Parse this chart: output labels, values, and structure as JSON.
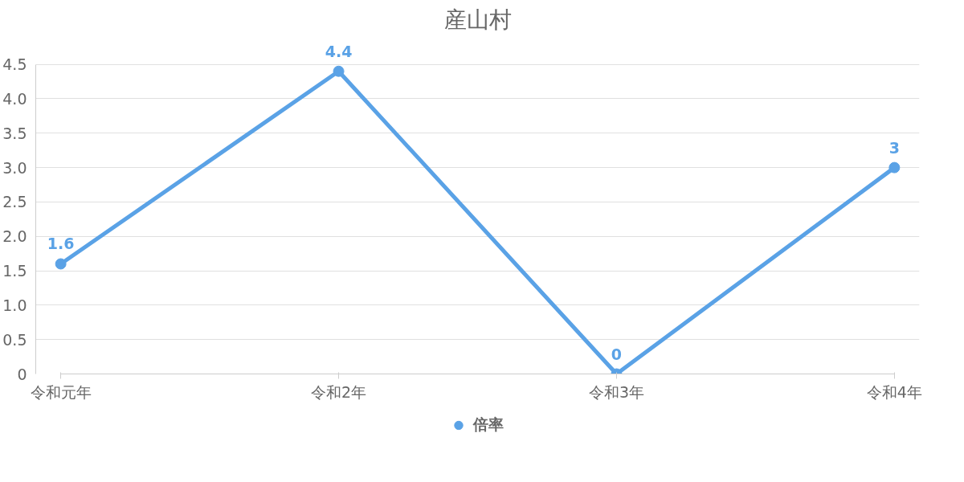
{
  "chart_data": {
    "type": "line",
    "title": "産山村",
    "categories": [
      "令和元年",
      "令和2年",
      "令和3年",
      "令和4年"
    ],
    "series": [
      {
        "name": "倍率",
        "color": "#5aa2e6",
        "values": [
          1.6,
          4.4,
          0,
          3
        ]
      }
    ],
    "ylim": [
      0,
      4.5
    ],
    "yticks": [
      0,
      0.5,
      {
        "value": 1,
        "label": "1.0"
      },
      1.5,
      {
        "value": 2,
        "label": "2.0"
      },
      2.5,
      {
        "value": 3,
        "label": "3.0"
      },
      3.5,
      {
        "value": 4,
        "label": "4.0"
      },
      4.5
    ],
    "grid": "y",
    "legend": "bottom",
    "marker": "circle",
    "line_style": "solid",
    "data_labels": true
  }
}
